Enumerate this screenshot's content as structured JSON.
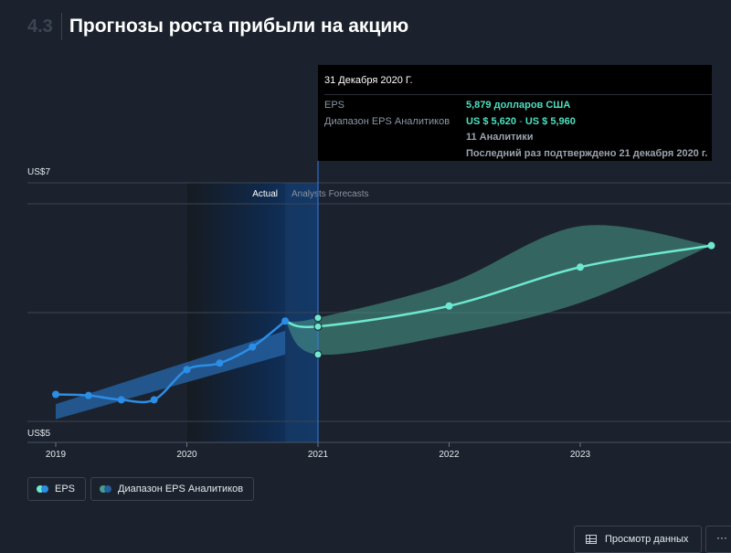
{
  "header": {
    "section_number": "4.3",
    "title": "Прогнозы роста прибыли на акцию"
  },
  "tooltip": {
    "date": "31 Декабря 2020 Г.",
    "eps_label": "EPS",
    "eps_value": "5,879 долларов США",
    "range_label": "Диапазон EPS Аналитиков",
    "range_low": "US $ 5,620",
    "range_sep": " - ",
    "range_high": "US $ 5,960",
    "analysts": "11 Аналитики",
    "confirmed": "Последний раз подтверждено 21 декабря 2020 г."
  },
  "legend": {
    "eps": "EPS",
    "range": "Диапазон EPS Аналитиков"
  },
  "buttons": {
    "view_data": "Просмотр данных",
    "more": "···"
  },
  "colors": {
    "eps_actual": "#2b8ee6",
    "eps_forecast": "#6ee8d0",
    "range_band": "#4a9d8c",
    "actual_band": "#245f9e"
  },
  "chart_data": {
    "type": "line",
    "x_ticks": [
      "2019",
      "2020",
      "2021",
      "2022",
      "2023"
    ],
    "ylabels": [
      "US$7",
      "US$5"
    ],
    "ylim": [
      5,
      7
    ],
    "region_labels": {
      "actual": "Actual",
      "forecast": "Analysts Forecasts"
    },
    "series": [
      {
        "name": "EPS",
        "x": [
          2019.0,
          2019.25,
          2019.5,
          2019.75,
          2020.0,
          2020.25,
          2020.5,
          2020.75,
          2021.0,
          2022.0,
          2023.0,
          2024.0
        ],
        "y": [
          5.25,
          5.24,
          5.2,
          5.2,
          5.48,
          5.54,
          5.69,
          5.93,
          5.88,
          6.07,
          6.43,
          6.63
        ]
      }
    ],
    "analyst_range": {
      "name": "Диапазон EPS Аналитиков",
      "actual": {
        "x": [
          2019.0,
          2020.75
        ],
        "low": [
          5.02,
          5.62
        ],
        "high": [
          5.16,
          5.84
        ]
      },
      "forecast": {
        "x": [
          2020.75,
          2021.0,
          2022.0,
          2023.0,
          2024.0
        ],
        "low": [
          5.93,
          5.62,
          5.8,
          6.1,
          6.63
        ],
        "high": [
          5.93,
          5.96,
          6.28,
          6.81,
          6.63
        ]
      }
    },
    "highlight": {
      "x": 2021.0,
      "eps": 5.879,
      "range_low": 5.62,
      "range_high": 5.96
    }
  }
}
